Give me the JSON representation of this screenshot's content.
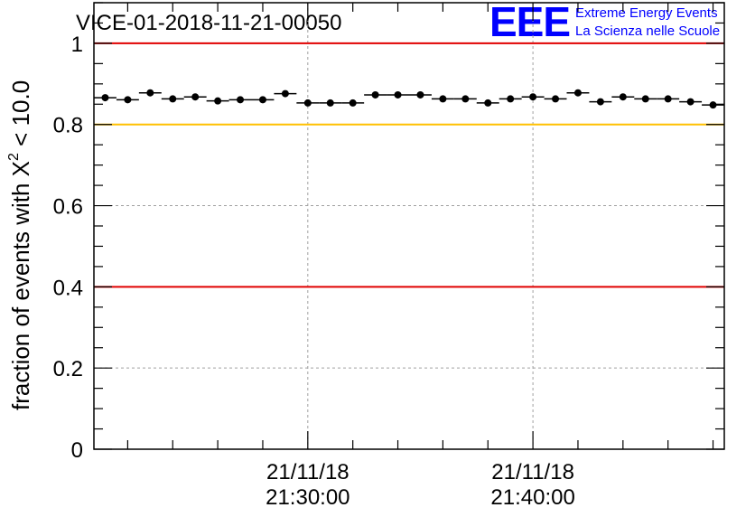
{
  "chart_data": {
    "type": "scatter",
    "title": "VICE-01-2018-11-21-00050",
    "ylabel_prefix": "fraction of events with ",
    "ylabel_symbol": "X",
    "ylabel_superscript": "2",
    "ylabel_suffix": " < 10.0",
    "xlabel": "",
    "ylim": [
      0,
      1.1
    ],
    "xlim": [
      0,
      28
    ],
    "yticks": [
      {
        "value": 0,
        "label": "0"
      },
      {
        "value": 0.2,
        "label": "0.2"
      },
      {
        "value": 0.4,
        "label": "0.4"
      },
      {
        "value": 0.6,
        "label": "0.6"
      },
      {
        "value": 0.8,
        "label": "0.8"
      },
      {
        "value": 1.0,
        "label": "1"
      }
    ],
    "xticks": [
      {
        "value": 9.5,
        "date": "21/11/18",
        "time": "21:30:00"
      },
      {
        "value": 19.5,
        "date": "21/11/18",
        "time": "21:40:00"
      }
    ],
    "reference_lines": [
      {
        "value": 1.0,
        "color": "#e00000"
      },
      {
        "value": 0.8,
        "color": "#ffc000"
      },
      {
        "value": 0.4,
        "color": "#e00000"
      }
    ],
    "series": [
      {
        "name": "fraction",
        "color": "#000000",
        "x": [
          0.5,
          1.5,
          2.5,
          3.5,
          4.5,
          5.5,
          6.5,
          7.5,
          8.5,
          9.5,
          10.5,
          11.5,
          12.5,
          13.5,
          14.5,
          15.5,
          16.5,
          17.5,
          18.5,
          19.5,
          20.5,
          21.5,
          22.5,
          23.5,
          24.5,
          25.5,
          26.5,
          27.5
        ],
        "values": [
          0.866,
          0.861,
          0.878,
          0.863,
          0.868,
          0.858,
          0.861,
          0.861,
          0.876,
          0.853,
          0.853,
          0.853,
          0.873,
          0.873,
          0.873,
          0.863,
          0.863,
          0.853,
          0.863,
          0.868,
          0.863,
          0.878,
          0.856,
          0.868,
          0.863,
          0.863,
          0.856,
          0.848
        ]
      }
    ]
  },
  "logo": {
    "mark": "EEE",
    "line1": "Extreme Energy Events",
    "line2": "La Scienza nelle Scuole",
    "color": "#0000ff"
  }
}
